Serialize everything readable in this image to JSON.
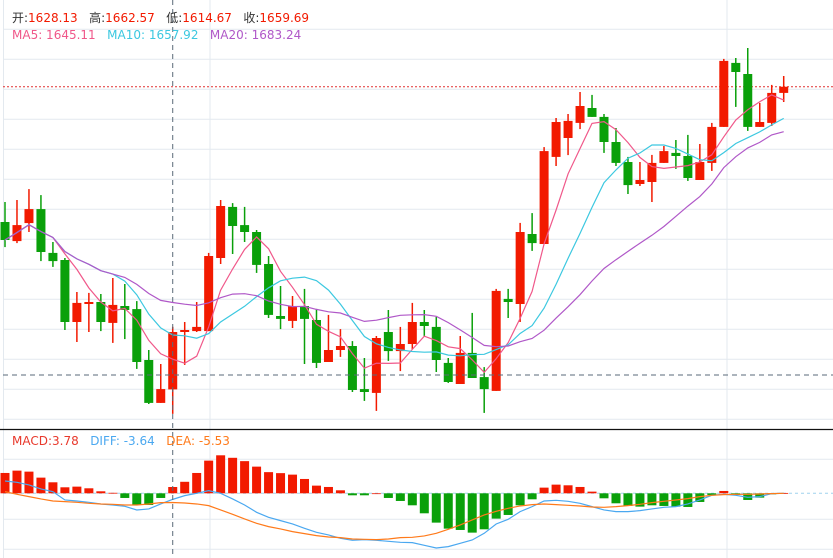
{
  "info": {
    "open_label": "开:",
    "open": "1628.13",
    "high_label": "高:",
    "high": "1662.57",
    "low_label": "低:",
    "low": "1614.67",
    "close_label": "收:",
    "close": "1659.69",
    "ma5": "MA5: 1645.11",
    "ma10": "MA10: 1657.92",
    "ma20": "MA20: 1683.24",
    "macd": "MACD:3.78",
    "diff": "DIFF: -3.64",
    "dea": "DEA: -5.53"
  },
  "colors": {
    "up": "#f21a00",
    "down": "#0aa00a",
    "ma5": "#f0588a",
    "ma10": "#3cc8e0",
    "ma20": "#b058c8",
    "diff": "#4aa8f0",
    "dea": "#ff7a1a"
  },
  "chart_data": {
    "type": "candlestick",
    "crosshair_index": 14,
    "last_close": 1794.6,
    "ohlc": [
      [
        1720.2,
        1731.2,
        1706.4,
        1710.3
      ],
      [
        1709.7,
        1732.3,
        1708.6,
        1718.5
      ],
      [
        1719.6,
        1738.3,
        1714.7,
        1727.3
      ],
      [
        1727.3,
        1735.0,
        1698.7,
        1703.7
      ],
      [
        1703.2,
        1709.2,
        1695.5,
        1698.7
      ],
      [
        1699.3,
        1700.4,
        1660.8,
        1665.2
      ],
      [
        1665.2,
        1681.7,
        1654.2,
        1675.7
      ],
      [
        1675.1,
        1681.2,
        1659.7,
        1676.2
      ],
      [
        1676.2,
        1680.6,
        1660.2,
        1665.2
      ],
      [
        1664.7,
        1689.4,
        1653.7,
        1674.6
      ],
      [
        1674.0,
        1686.1,
        1655.8,
        1671.8
      ],
      [
        1672.3,
        1676.7,
        1639.4,
        1643.2
      ],
      [
        1644.3,
        1649.8,
        1620.1,
        1620.7
      ],
      [
        1620.7,
        1642.1,
        1620.7,
        1628.3
      ],
      [
        1628.13,
        1662.57,
        1614.67,
        1659.69
      ],
      [
        1659.7,
        1665.2,
        1641.6,
        1660.8
      ],
      [
        1660.2,
        1676.2,
        1659.7,
        1662.5
      ],
      [
        1660.2,
        1703.2,
        1660.2,
        1701.5
      ],
      [
        1700.4,
        1732.3,
        1697.1,
        1729.0
      ],
      [
        1728.5,
        1730.6,
        1702.6,
        1718.0
      ],
      [
        1718.5,
        1728.5,
        1709.2,
        1714.7
      ],
      [
        1714.7,
        1715.8,
        1692.2,
        1696.6
      ],
      [
        1697.1,
        1701.5,
        1667.4,
        1669.1
      ],
      [
        1668.5,
        1685.0,
        1661.3,
        1666.9
      ],
      [
        1665.8,
        1679.5,
        1661.9,
        1674.0
      ],
      [
        1674.0,
        1683.4,
        1642.1,
        1666.9
      ],
      [
        1666.3,
        1672.4,
        1639.9,
        1642.7
      ],
      [
        1643.2,
        1669.1,
        1643.2,
        1649.8
      ],
      [
        1649.8,
        1661.3,
        1646.0,
        1652.0
      ],
      [
        1652.0,
        1654.7,
        1626.7,
        1627.8
      ],
      [
        1628.3,
        1645.4,
        1621.8,
        1626.7
      ],
      [
        1626.2,
        1657.5,
        1616.3,
        1656.4
      ],
      [
        1659.7,
        1671.8,
        1643.8,
        1649.2
      ],
      [
        1649.2,
        1662.5,
        1638.2,
        1653.1
      ],
      [
        1653.1,
        1675.7,
        1650.3,
        1665.2
      ],
      [
        1665.2,
        1671.8,
        1657.0,
        1663.0
      ],
      [
        1662.5,
        1668.0,
        1637.7,
        1644.3
      ],
      [
        1642.7,
        1645.4,
        1631.7,
        1632.2
      ],
      [
        1631.1,
        1657.5,
        1631.1,
        1648.2
      ],
      [
        1648.2,
        1670.2,
        1634.4,
        1634.4
      ],
      [
        1634.9,
        1640.4,
        1615.2,
        1628.3
      ],
      [
        1627.3,
        1683.4,
        1627.3,
        1682.3
      ],
      [
        1677.9,
        1683.4,
        1667.4,
        1676.2
      ],
      [
        1675.1,
        1719.7,
        1665.2,
        1714.7
      ],
      [
        1713.6,
        1725.1,
        1704.3,
        1708.6
      ],
      [
        1708.1,
        1761.4,
        1708.1,
        1759.2
      ],
      [
        1756.0,
        1777.4,
        1751.0,
        1775.2
      ],
      [
        1766.4,
        1779.6,
        1757.0,
        1775.8
      ],
      [
        1774.7,
        1791.7,
        1771.3,
        1784.0
      ],
      [
        1782.9,
        1790.1,
        1778.0,
        1778.0
      ],
      [
        1778.0,
        1779.6,
        1758.2,
        1764.2
      ],
      [
        1764.2,
        1771.9,
        1751.0,
        1752.7
      ],
      [
        1753.2,
        1756.0,
        1735.6,
        1740.5
      ],
      [
        1741.1,
        1753.2,
        1740.0,
        1743.3
      ],
      [
        1742.2,
        1757.1,
        1731.2,
        1752.7
      ],
      [
        1752.7,
        1762.0,
        1752.7,
        1759.2
      ],
      [
        1758.2,
        1765.3,
        1749.4,
        1756.5
      ],
      [
        1756.5,
        1768.1,
        1742.8,
        1744.4
      ],
      [
        1743.3,
        1763.1,
        1743.3,
        1753.2
      ],
      [
        1752.7,
        1774.7,
        1748.3,
        1772.5
      ],
      [
        1772.5,
        1809.9,
        1772.5,
        1808.8
      ],
      [
        1807.7,
        1810.4,
        1783.5,
        1802.7
      ],
      [
        1801.6,
        1815.9,
        1770.3,
        1772.5
      ],
      [
        1772.5,
        1785.7,
        1772.5,
        1775.2
      ],
      [
        1774.7,
        1795.6,
        1773.0,
        1791.2
      ],
      [
        1791.2,
        1800.5,
        1786.2,
        1794.6
      ]
    ],
    "macd": [
      12.2,
      13.6,
      13.0,
      9.4,
      6.6,
      3.6,
      4.0,
      3.0,
      1.2,
      0.3,
      -2.8,
      -7.0,
      -7.0,
      -2.8,
      3.78,
      6.9,
      12.2,
      19.6,
      22.8,
      21.3,
      19.3,
      16.0,
      12.7,
      12.1,
      11.2,
      8.6,
      4.6,
      3.8,
      1.8,
      -1.2,
      -1.2,
      0,
      -2.8,
      -4.6,
      -7.2,
      -12.0,
      -17.6,
      -21.2,
      -22.0,
      -23.6,
      -21.6,
      -15.2,
      -13.0,
      -7.2,
      -3.6,
      3.4,
      5.2,
      4.8,
      3.8,
      1.0,
      -3.0,
      -6.0,
      -7.6,
      -8.0,
      -7.2,
      -7.6,
      -8.0,
      -8.2,
      -5.2,
      -1.0,
      1.4,
      -1.0,
      -4.0,
      -2.6,
      -0.6,
      0.2
    ],
    "diff": [
      7.4,
      6.6,
      5.0,
      2.6,
      1.0,
      -4.0,
      -4.6,
      -5.4,
      -6.4,
      -7.0,
      -7.8,
      -10.0,
      -9.4,
      -6.4,
      -3.64,
      -1.4,
      0,
      1.6,
      0,
      -3.4,
      -7.0,
      -11.4,
      -14.4,
      -16.4,
      -18.4,
      -21.0,
      -23.4,
      -25.0,
      -27.0,
      -28.2,
      -27.8,
      -28.2,
      -28.8,
      -29.4,
      -29.6,
      -31.2,
      -32.8,
      -32.0,
      -30.0,
      -28.0,
      -24.0,
      -18.4,
      -15.6,
      -11.0,
      -8.0,
      -4.6,
      -4.2,
      -4.8,
      -6.0,
      -8.0,
      -10.0,
      -11.0,
      -11.0,
      -10.4,
      -9.4,
      -8.4,
      -8.0,
      -6.4,
      -4.0,
      -1.2,
      -0.6,
      -1.2,
      -2.4,
      -2.0,
      -0.2,
      0
    ],
    "dea": [
      1.0,
      -0.6,
      -2.0,
      -3.4,
      -4.6,
      -5.0,
      -5.4,
      -6.0,
      -6.4,
      -6.6,
      -7.0,
      -7.0,
      -6.4,
      -5.6,
      -5.53,
      -5.8,
      -6.4,
      -7.4,
      -10.0,
      -12.6,
      -15.4,
      -18.0,
      -20.0,
      -21.4,
      -23.0,
      -24.2,
      -25.4,
      -26.2,
      -26.6,
      -27.4,
      -27.6,
      -27.8,
      -27.4,
      -26.6,
      -26.4,
      -25.6,
      -24.0,
      -21.6,
      -19.0,
      -16.0,
      -13.0,
      -10.8,
      -9.0,
      -7.6,
      -6.8,
      -6.4,
      -6.8,
      -7.2,
      -7.6,
      -8.2,
      -8.4,
      -8.0,
      -7.4,
      -6.6,
      -5.6,
      -4.8,
      -4.0,
      -3.2,
      -2.0,
      -1.2,
      -0.8,
      -0.6,
      -0.6,
      -0.4,
      -0.2,
      0
    ],
    "grid": true
  }
}
